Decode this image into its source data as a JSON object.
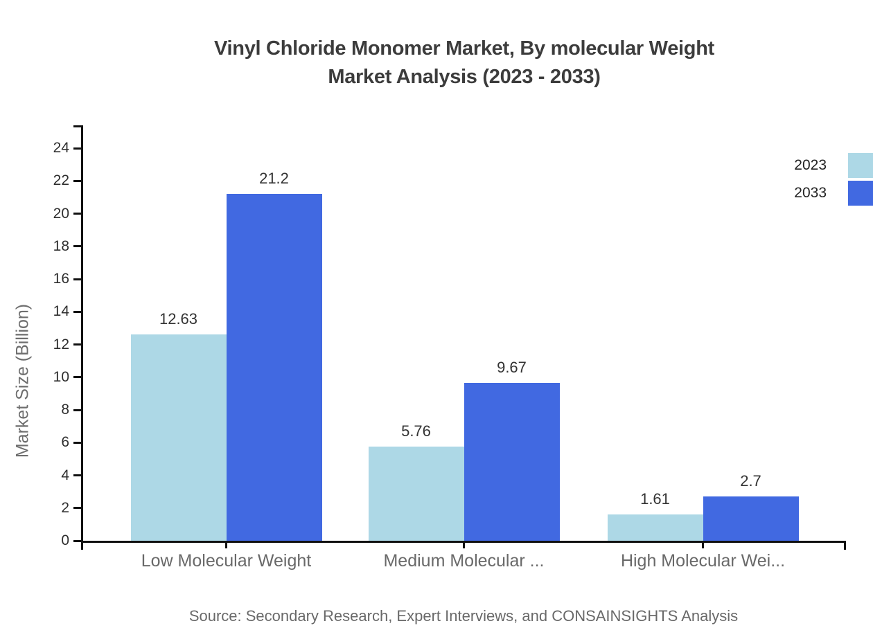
{
  "title": {
    "line1": "Vinyl Chloride Monomer Market, By molecular Weight",
    "line2": "Market Analysis (2023 - 2033)"
  },
  "source_note": "Source: Secondary Research, Expert Interviews, and CONSAINSIGHTS Analysis",
  "chart_data": {
    "type": "bar",
    "title": "Vinyl Chloride Monomer Market, By molecular Weight Market Analysis (2023 - 2033)",
    "ylabel": "Market Size (Billion)",
    "xlabel": "",
    "categories": [
      "Low Molecular Weight",
      "Medium Molecular ...",
      "High Molecular Wei..."
    ],
    "series": [
      {
        "name": "2023",
        "color": "#add8e6",
        "values": [
          12.63,
          5.76,
          1.61
        ],
        "labels": [
          "12.63",
          "5.76",
          "1.61"
        ]
      },
      {
        "name": "2033",
        "color": "#4169e1",
        "values": [
          21.2,
          9.67,
          2.7
        ],
        "labels": [
          "21.2",
          "9.67",
          "2.7"
        ]
      }
    ],
    "yticks": [
      0,
      2,
      4,
      6,
      8,
      10,
      12,
      14,
      16,
      18,
      20,
      22,
      24
    ],
    "ylim": [
      0,
      25.4
    ],
    "grid": false,
    "legend_position": "top-right",
    "legend": [
      "2023",
      "2033"
    ],
    "colors": {
      "axis": "#111111",
      "tick_label": "#2e2e2e",
      "category_label": "#696969",
      "value_label": "#333333",
      "title": "#3c3c3c",
      "source": "#696969"
    }
  }
}
